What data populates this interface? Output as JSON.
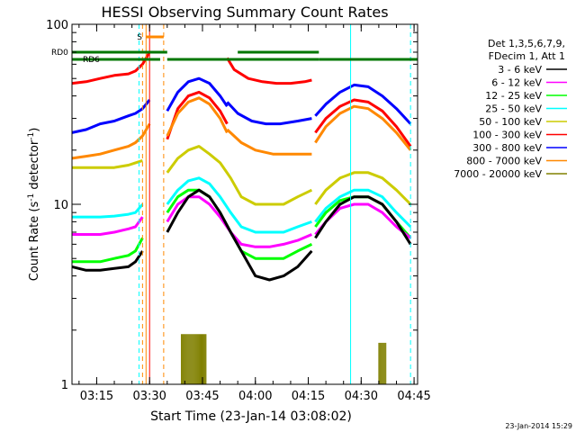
{
  "chart_data": {
    "type": "line",
    "title": "HESSI Observing Summary Count Rates",
    "xlabel": "Start Time (23-Jan-14 03:08:02)",
    "ylabel": "Count Rate (s",
    "ylabel_sup": "-1",
    "ylabel_tail": " detector",
    "ylabel_end": ")",
    "y_scale": "log",
    "ylim": [
      1,
      100
    ],
    "xlim": [
      "03:08",
      "04:46"
    ],
    "x_ticks": [
      "03:15",
      "03:30",
      "03:45",
      "04:00",
      "04:15",
      "04:30",
      "04:45"
    ],
    "y_ticks": [
      "1",
      "10",
      "100"
    ],
    "timestamp": "23-Jan-2014 15:29",
    "legend_header": [
      "Det 1,3,5,6,7,9,",
      "FDecim 1, Att 1"
    ],
    "legend": [
      {
        "label": "3 - 6 keV",
        "color": "#000000"
      },
      {
        "label": "6 - 12 keV",
        "color": "#ff00ff"
      },
      {
        "label": "12 - 25 keV",
        "color": "#00ff00"
      },
      {
        "label": "25 - 50 keV",
        "color": "#00ffff"
      },
      {
        "label": "50 - 100 keV",
        "color": "#cccc00"
      },
      {
        "label": "100 - 300 keV",
        "color": "#ff0000"
      },
      {
        "label": "300 - 800 keV",
        "color": "#0000ff"
      },
      {
        "label": "800 - 7000 keV",
        "color": "#ff8800"
      },
      {
        "label": "7000 - 20000 keV",
        "color": "#808000"
      }
    ],
    "flags": [
      {
        "label": "RD0",
        "color": "#007700",
        "segments": [
          [
            "03:08",
            "03:35"
          ],
          [
            "03:55",
            "04:18"
          ]
        ]
      },
      {
        "label": "RD6",
        "color": "#007700",
        "segments": [
          [
            "03:08",
            "03:33"
          ],
          [
            "03:35",
            "04:18"
          ],
          [
            "04:18",
            "04:46"
          ]
        ]
      },
      {
        "label": "S",
        "color": "#ff8800",
        "segments": [
          [
            "03:29",
            "03:34"
          ]
        ]
      }
    ],
    "series": [
      {
        "name": "300 - 800 keV",
        "color": "#0000ff",
        "segments": [
          {
            "x": [
              "03:08",
              "03:12",
              "03:16",
              "03:20",
              "03:24",
              "03:26",
              "03:28",
              "03:30"
            ],
            "y": [
              25,
              26,
              28,
              29,
              31,
              32,
              34,
              38
            ]
          },
          {
            "x": [
              "03:35",
              "03:38",
              "03:41",
              "03:44",
              "03:47",
              "03:50",
              "03:52"
            ],
            "y": [
              33,
              42,
              48,
              50,
              47,
              40,
              35
            ]
          },
          {
            "x": [
              "03:52",
              "03:55",
              "03:59",
              "04:03",
              "04:07",
              "04:12",
              "04:16"
            ],
            "y": [
              37,
              32,
              29,
              28,
              28,
              29,
              30
            ]
          },
          {
            "x": [
              "04:17",
              "04:20",
              "04:24",
              "04:28",
              "04:32",
              "04:36",
              "04:40",
              "04:44"
            ],
            "y": [
              31,
              36,
              42,
              46,
              45,
              40,
              34,
              28
            ]
          }
        ]
      },
      {
        "name": "100 - 300 keV",
        "color": "#ff0000",
        "segments": [
          {
            "x": [
              "03:08",
              "03:12",
              "03:16",
              "03:20",
              "03:24",
              "03:26",
              "03:28",
              "03:30"
            ],
            "y": [
              47,
              48,
              50,
              52,
              53,
              55,
              60,
              70
            ]
          },
          {
            "x": [
              "03:35",
              "03:38",
              "03:41",
              "03:44",
              "03:47",
              "03:50",
              "03:52"
            ],
            "y": [
              23,
              34,
              40,
              42,
              39,
              33,
              28
            ]
          },
          {
            "x": [
              "03:52",
              "03:54",
              "03:58",
              "04:02",
              "04:06",
              "04:10",
              "04:14",
              "04:16"
            ],
            "y": [
              65,
              56,
              50,
              48,
              47,
              47,
              48,
              49
            ]
          },
          {
            "x": [
              "04:17",
              "04:20",
              "04:24",
              "04:28",
              "04:32",
              "04:36",
              "04:40",
              "04:44"
            ],
            "y": [
              25,
              30,
              35,
              38,
              37,
              33,
              27,
              21
            ]
          }
        ]
      },
      {
        "name": "800 - 7000 keV",
        "color": "#ff8800",
        "segments": [
          {
            "x": [
              "03:08",
              "03:12",
              "03:16",
              "03:20",
              "03:24",
              "03:26",
              "03:28",
              "03:30"
            ],
            "y": [
              18,
              18.5,
              19,
              20,
              21,
              22,
              24,
              28
            ]
          },
          {
            "x": [
              "03:35",
              "03:38",
              "03:41",
              "03:44",
              "03:47",
              "03:50",
              "03:52"
            ],
            "y": [
              24,
              32,
              37,
              39,
              36,
              30,
              25
            ]
          },
          {
            "x": [
              "03:52",
              "03:56",
              "04:00",
              "04:05",
              "04:10",
              "04:16"
            ],
            "y": [
              26,
              22,
              20,
              19,
              19,
              19
            ]
          },
          {
            "x": [
              "04:17",
              "04:20",
              "04:24",
              "04:28",
              "04:32",
              "04:36",
              "04:40",
              "04:44"
            ],
            "y": [
              22,
              27,
              32,
              35,
              34,
              30,
              25,
              20
            ]
          }
        ]
      },
      {
        "name": "50 - 100 keV",
        "color": "#cccc00",
        "segments": [
          {
            "x": [
              "03:08",
              "03:12",
              "03:16",
              "03:20",
              "03:24",
              "03:26",
              "03:28"
            ],
            "y": [
              16,
              16,
              16,
              16,
              16.5,
              17,
              17.5
            ]
          },
          {
            "x": [
              "03:35",
              "03:38",
              "03:41",
              "03:44",
              "03:47",
              "03:50",
              "03:53",
              "03:56",
              "04:00",
              "04:04",
              "04:08",
              "04:12",
              "04:16"
            ],
            "y": [
              15,
              18,
              20,
              21,
              19,
              17,
              14,
              11,
              10,
              10,
              10,
              11,
              12
            ]
          },
          {
            "x": [
              "04:17",
              "04:20",
              "04:24",
              "04:28",
              "04:32",
              "04:36",
              "04:40",
              "04:44"
            ],
            "y": [
              10,
              12,
              14,
              15,
              15,
              14,
              12,
              10
            ]
          }
        ]
      },
      {
        "name": "25 - 50 keV",
        "color": "#00ffff",
        "segments": [
          {
            "x": [
              "03:08",
              "03:12",
              "03:16",
              "03:20",
              "03:24",
              "03:26",
              "03:28"
            ],
            "y": [
              8.5,
              8.5,
              8.5,
              8.6,
              8.8,
              9,
              10
            ]
          },
          {
            "x": [
              "03:35",
              "03:38",
              "03:41",
              "03:44",
              "03:47",
              "03:50",
              "03:53",
              "03:56",
              "04:00",
              "04:04",
              "04:08",
              "04:12",
              "04:16"
            ],
            "y": [
              10,
              12,
              13.5,
              14,
              13,
              11,
              9,
              7.5,
              7,
              7,
              7,
              7.5,
              8
            ]
          },
          {
            "x": [
              "04:17",
              "04:20",
              "04:24",
              "04:28",
              "04:32",
              "04:36",
              "04:40",
              "04:44"
            ],
            "y": [
              8,
              9.5,
              11,
              12,
              12,
              11,
              9,
              7.5
            ]
          }
        ]
      },
      {
        "name": "12 - 25 keV",
        "color": "#00ff00",
        "segments": [
          {
            "x": [
              "03:08",
              "03:12",
              "03:16",
              "03:20",
              "03:24",
              "03:26",
              "03:28"
            ],
            "y": [
              4.8,
              4.8,
              4.8,
              5,
              5.2,
              5.5,
              6.5
            ]
          },
          {
            "x": [
              "03:35",
              "03:38",
              "03:41",
              "03:44",
              "03:47",
              "03:50",
              "03:53",
              "03:56",
              "04:00",
              "04:04",
              "04:08",
              "04:12",
              "04:16"
            ],
            "y": [
              9,
              11,
              12,
              12,
              11,
              9,
              7,
              5.5,
              5,
              5,
              5,
              5.5,
              6
            ]
          },
          {
            "x": [
              "04:17",
              "04:20",
              "04:24",
              "04:28",
              "04:32",
              "04:36",
              "04:40",
              "04:44"
            ],
            "y": [
              7.5,
              9,
              10.5,
              11,
              11,
              10,
              8,
              6.5
            ]
          }
        ]
      },
      {
        "name": "6 - 12 keV",
        "color": "#ff00ff",
        "segments": [
          {
            "x": [
              "03:08",
              "03:12",
              "03:16",
              "03:20",
              "03:24",
              "03:26",
              "03:28"
            ],
            "y": [
              6.8,
              6.8,
              6.8,
              7,
              7.3,
              7.5,
              8.5
            ]
          },
          {
            "x": [
              "03:35",
              "03:38",
              "03:41",
              "03:44",
              "03:47",
              "03:50",
              "03:53",
              "03:56",
              "04:00",
              "04:04",
              "04:08",
              "04:12",
              "04:16"
            ],
            "y": [
              8,
              10,
              11,
              11,
              10,
              8.5,
              7,
              6,
              5.8,
              5.8,
              6,
              6.3,
              6.8
            ]
          },
          {
            "x": [
              "04:17",
              "04:20",
              "04:24",
              "04:28",
              "04:32",
              "04:36",
              "04:40",
              "04:44"
            ],
            "y": [
              6.8,
              8,
              9.5,
              10,
              10,
              9,
              7.5,
              6.5
            ]
          }
        ]
      },
      {
        "name": "3 - 6 keV",
        "color": "#000000",
        "segments": [
          {
            "x": [
              "03:08",
              "03:12",
              "03:16",
              "03:20",
              "03:24",
              "03:26",
              "03:28"
            ],
            "y": [
              4.5,
              4.3,
              4.3,
              4.4,
              4.5,
              4.8,
              5.5
            ]
          },
          {
            "x": [
              "03:35",
              "03:38",
              "03:41",
              "03:44",
              "03:47",
              "03:50",
              "03:53",
              "03:56",
              "04:00",
              "04:04",
              "04:08",
              "04:12",
              "04:16"
            ],
            "y": [
              7,
              9,
              11,
              12,
              11,
              9,
              7,
              5.5,
              4,
              3.8,
              4,
              4.5,
              5.5
            ]
          },
          {
            "x": [
              "04:17",
              "04:20",
              "04:24",
              "04:28",
              "04:32",
              "04:36",
              "04:40",
              "04:44"
            ],
            "y": [
              6.5,
              8,
              10,
              11,
              11,
              10,
              8,
              6
            ]
          }
        ]
      }
    ],
    "v_lines": [
      {
        "x": "03:08",
        "color": "#00ffff",
        "style": "solid"
      },
      {
        "x": "03:27",
        "color": "#00ffff",
        "style": "dashed"
      },
      {
        "x": "03:28",
        "color": "#ff8800",
        "style": "dashed"
      },
      {
        "x": "03:29",
        "color": "#ff8800",
        "style": "solid"
      },
      {
        "x": "03:30",
        "color": "#ff0000",
        "style": "solid"
      },
      {
        "x": "03:34",
        "color": "#ff8800",
        "style": "dashed"
      },
      {
        "x": "04:27",
        "color": "#00ffff",
        "style": "solid"
      },
      {
        "x": "04:44",
        "color": "#00ffff",
        "style": "dashed"
      }
    ],
    "low_bursts": [
      {
        "name": "7000 - 20000 keV",
        "color": "#808000",
        "x": [
          "03:39",
          "03:46"
        ],
        "y": [
          1,
          1.9
        ]
      },
      {
        "name": "7000 - 20000 keV",
        "color": "#808000",
        "x": [
          "04:35",
          "04:37"
        ],
        "y": [
          1,
          1.7
        ]
      }
    ]
  }
}
